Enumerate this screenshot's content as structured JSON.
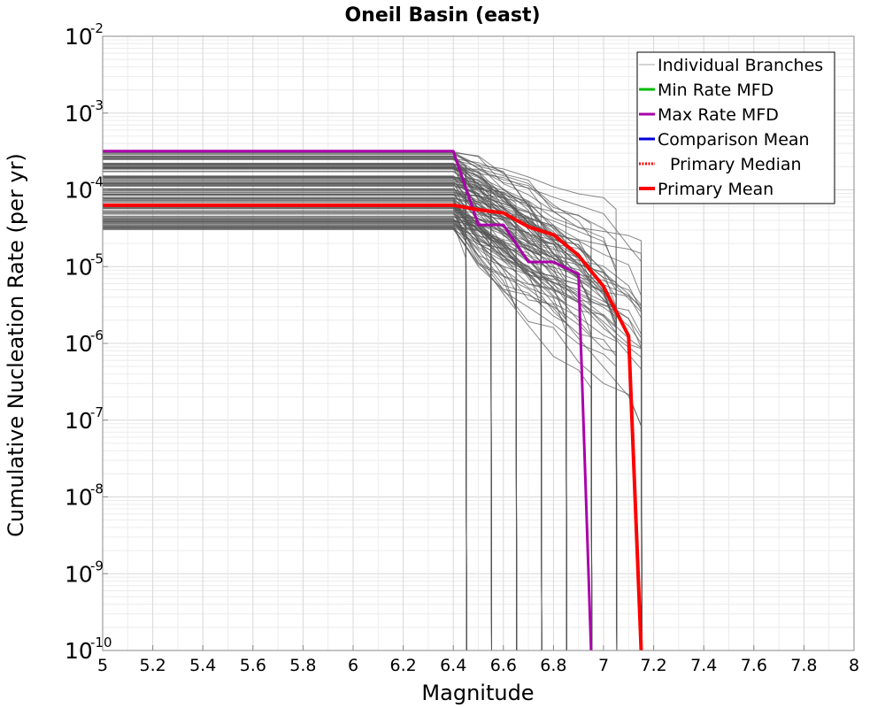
{
  "chart_data": {
    "type": "line",
    "title": "Oneil Basin (east)",
    "xlabel": "Magnitude",
    "ylabel": "Cumulative Nucleation Rate (per yr)",
    "xlim": [
      5,
      8
    ],
    "ylim": [
      1e-10,
      0.01
    ],
    "yscale": "log",
    "grid": true,
    "legend_position": "top-right",
    "x_ticks": [
      "5",
      "5.2",
      "5.4",
      "5.6",
      "5.8",
      "6",
      "6.2",
      "6.4",
      "6.6",
      "6.8",
      "7",
      "7.2",
      "7.4",
      "7.6",
      "7.8",
      "8"
    ],
    "y_ticks": [
      {
        "base": "10",
        "exp": "-10"
      },
      {
        "base": "10",
        "exp": "-9"
      },
      {
        "base": "10",
        "exp": "-8"
      },
      {
        "base": "10",
        "exp": "-7"
      },
      {
        "base": "10",
        "exp": "-6"
      },
      {
        "base": "10",
        "exp": "-5"
      },
      {
        "base": "10",
        "exp": "-4"
      },
      {
        "base": "10",
        "exp": "-3"
      },
      {
        "base": "10",
        "exp": "-2"
      }
    ],
    "legend": [
      {
        "label": "Individual Branches",
        "color": "#aaaaaa",
        "style": "solid",
        "width": 1
      },
      {
        "label": "Min Rate MFD",
        "color": "#00bb00",
        "style": "solid",
        "width": 3
      },
      {
        "label": "Max Rate MFD",
        "color": "#aa00aa",
        "style": "solid",
        "width": 3
      },
      {
        "label": "Comparison Mean",
        "color": "#0000dd",
        "style": "solid",
        "width": 3
      },
      {
        "label": "Primary Median",
        "color": "#ff0000",
        "style": "dotted",
        "width": 3
      },
      {
        "label": "Primary Mean",
        "color": "#ff0000",
        "style": "solid",
        "width": 4
      }
    ],
    "series": [
      {
        "name": "Max Rate MFD",
        "color": "#aa00aa",
        "x": [
          5.0,
          6.4,
          6.5,
          6.6,
          6.7,
          6.8,
          6.9,
          6.95
        ],
        "y": [
          0.00032,
          0.00032,
          3.5e-05,
          3.5e-05,
          1.15e-05,
          1.15e-05,
          8e-06,
          1e-10
        ]
      },
      {
        "name": "Primary Mean",
        "color": "#ff0000",
        "x": [
          5.0,
          6.4,
          6.5,
          6.6,
          6.7,
          6.8,
          6.9,
          7.0,
          7.1,
          7.15
        ],
        "y": [
          6.3e-05,
          6.3e-05,
          5.5e-05,
          5e-05,
          3.3e-05,
          2.6e-05,
          1.4e-05,
          5.5e-06,
          1.25e-06,
          1e-10
        ]
      }
    ],
    "branches": {
      "count": 140,
      "color": "#555555",
      "low_rate_range": [
        3e-05,
        0.00032
      ],
      "max_mags": [
        6.45,
        6.55,
        6.65,
        6.75,
        6.85,
        6.95,
        7.05,
        7.15
      ]
    }
  }
}
